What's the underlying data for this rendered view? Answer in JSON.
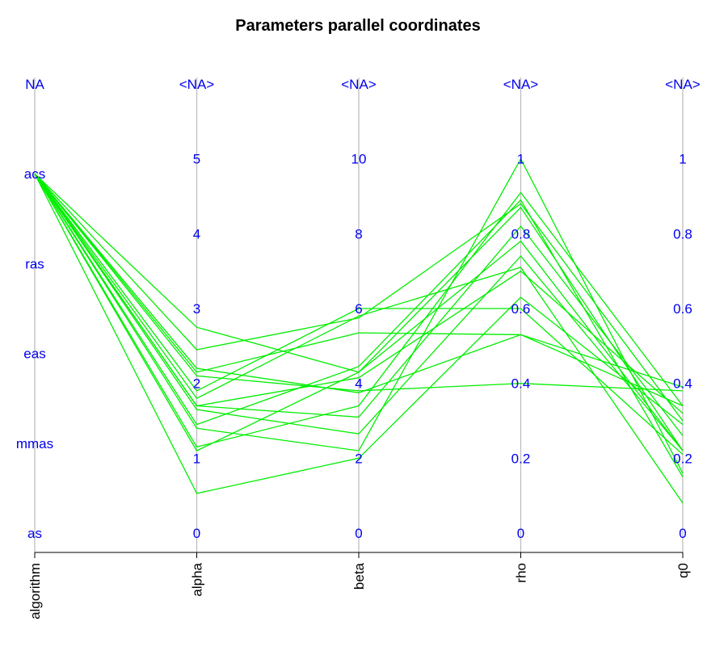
{
  "chart_data": {
    "type": "parallel-coordinates",
    "title": "Parameters parallel coordinates",
    "line_color": "#00ee00",
    "tick_color": "#0000ee",
    "axes": [
      {
        "name": "algorithm",
        "kind": "categorical",
        "ticks": [
          {
            "value": 0,
            "label": "as"
          },
          {
            "value": 1,
            "label": "mmas"
          },
          {
            "value": 2,
            "label": "eas"
          },
          {
            "value": 3,
            "label": "ras"
          },
          {
            "value": 4,
            "label": "acs"
          },
          {
            "value": 5,
            "label": "NA"
          }
        ],
        "range": [
          0,
          5
        ]
      },
      {
        "name": "alpha",
        "kind": "numeric",
        "ticks": [
          {
            "value": 0,
            "label": "0"
          },
          {
            "value": 1,
            "label": "1"
          },
          {
            "value": 2,
            "label": "2"
          },
          {
            "value": 3,
            "label": "3"
          },
          {
            "value": 4,
            "label": "4"
          },
          {
            "value": 5,
            "label": "5"
          },
          {
            "value": 6,
            "label": "<NA>"
          }
        ],
        "range": [
          0,
          6
        ]
      },
      {
        "name": "beta",
        "kind": "numeric",
        "ticks": [
          {
            "value": 0,
            "label": "0"
          },
          {
            "value": 2,
            "label": "2"
          },
          {
            "value": 4,
            "label": "4"
          },
          {
            "value": 6,
            "label": "6"
          },
          {
            "value": 8,
            "label": "8"
          },
          {
            "value": 10,
            "label": "10"
          },
          {
            "value": 12,
            "label": "<NA>"
          }
        ],
        "range": [
          0,
          12
        ]
      },
      {
        "name": "rho",
        "kind": "numeric",
        "ticks": [
          {
            "value": 0,
            "label": "0"
          },
          {
            "value": 0.2,
            "label": "0.2"
          },
          {
            "value": 0.4,
            "label": "0.4"
          },
          {
            "value": 0.6,
            "label": "0.6"
          },
          {
            "value": 0.8,
            "label": "0.8"
          },
          {
            "value": 1,
            "label": "1"
          },
          {
            "value": 1.2,
            "label": "<NA>"
          }
        ],
        "range": [
          0,
          1.2
        ]
      },
      {
        "name": "q0",
        "kind": "numeric",
        "ticks": [
          {
            "value": 0,
            "label": "0"
          },
          {
            "value": 0.2,
            "label": "0.2"
          },
          {
            "value": 0.4,
            "label": "0.4"
          },
          {
            "value": 0.6,
            "label": "0.6"
          },
          {
            "value": 0.8,
            "label": "0.8"
          },
          {
            "value": 1,
            "label": "1"
          },
          {
            "value": 1.2,
            "label": "<NA>"
          }
        ],
        "range": [
          0,
          1.2
        ]
      }
    ],
    "records": [
      {
        "algorithm": "acs",
        "alpha": 2.2,
        "beta": 3.75,
        "rho": 0.53,
        "q0": 0.39
      },
      {
        "algorithm": "acs",
        "alpha": 2.1,
        "beta": 3.8,
        "rho": 0.4,
        "q0": 0.38
      },
      {
        "algorithm": "acs",
        "alpha": 2.15,
        "beta": 5.35,
        "rho": 0.53,
        "q0": 0.34
      },
      {
        "algorithm": "acs",
        "alpha": 2.45,
        "beta": 5.75,
        "rho": 0.88,
        "q0": 0.3
      },
      {
        "algorithm": "acs",
        "alpha": 2.75,
        "beta": 4.3,
        "rho": 0.78,
        "q0": 0.22
      },
      {
        "algorithm": "acs",
        "alpha": 1.15,
        "beta": 3.4,
        "rho": 0.91,
        "q0": 0.34
      },
      {
        "algorithm": "acs",
        "alpha": 1.7,
        "beta": 4.15,
        "rho": 0.7,
        "q0": 0.32
      },
      {
        "algorithm": "acs",
        "alpha": 0.53,
        "beta": 2.0,
        "rho": 0.63,
        "q0": 0.29
      },
      {
        "algorithm": "acs",
        "alpha": 1.7,
        "beta": 3.1,
        "rho": 0.82,
        "q0": 0.26
      },
      {
        "algorithm": "acs",
        "alpha": 1.65,
        "beta": 2.65,
        "rho": 0.74,
        "q0": 0.22
      },
      {
        "algorithm": "acs",
        "alpha": 1.9,
        "beta": 6.0,
        "rho": 0.6,
        "q0": 0.21
      },
      {
        "algorithm": "acs",
        "alpha": 1.4,
        "beta": 2.2,
        "rho": 1.0,
        "q0": 0.16
      },
      {
        "algorithm": "acs",
        "alpha": 1.45,
        "beta": 4.45,
        "rho": 0.89,
        "q0": 0.15
      },
      {
        "algorithm": "acs",
        "alpha": 1.8,
        "beta": 5.8,
        "rho": 0.71,
        "q0": 0.08
      },
      {
        "algorithm": "acs",
        "alpha": 1.1,
        "beta": 4.3,
        "rho": 0.87,
        "q0": 0.22
      }
    ]
  }
}
